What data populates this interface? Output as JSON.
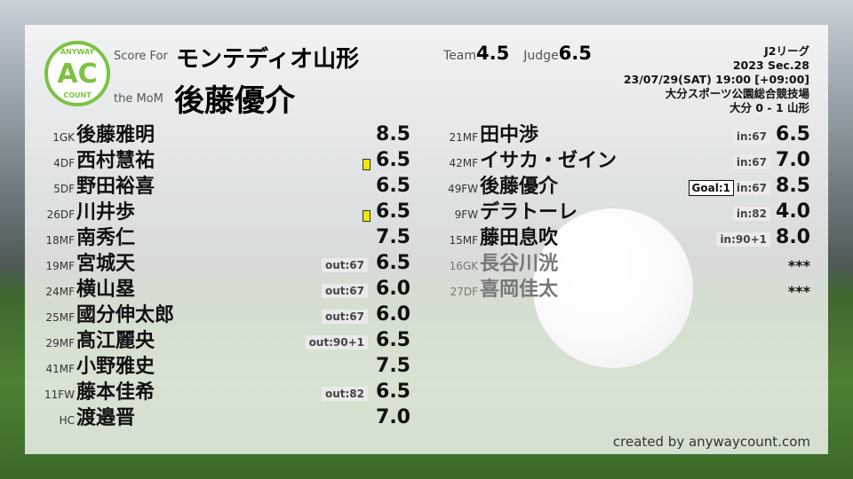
{
  "header": {
    "score_for_label": "Score For",
    "team_name": "モンテディオ山形",
    "mom_label": "the MoM",
    "mom_name": "後藤優介",
    "team_label": "Team",
    "team_score": "4.5",
    "judge_label": "Judge",
    "judge_score": "6.5"
  },
  "logo": {
    "top": "ANYWAY",
    "center": "AC",
    "bottom": "COUNT",
    "color": "#7cc242"
  },
  "match": {
    "league": "J2リーグ",
    "section": "2023 Sec.28",
    "datetime": "23/07/29(SAT) 19:00 [+09:00]",
    "venue": "大分スポーツ公園総合競技場",
    "result": "大分 0 - 1 山形"
  },
  "left": [
    {
      "pos": "1GK",
      "name": "後藤雅明",
      "score": "8.5"
    },
    {
      "pos": "4DF",
      "name": "西村慧祐",
      "score": "6.5",
      "yellow": true
    },
    {
      "pos": "5DF",
      "name": "野田裕喜",
      "score": "6.5"
    },
    {
      "pos": "26DF",
      "name": "川井歩",
      "score": "6.5",
      "yellow": true
    },
    {
      "pos": "18MF",
      "name": "南秀仁",
      "score": "7.5"
    },
    {
      "pos": "19MF",
      "name": "宮城天",
      "score": "6.5",
      "tag": "out:67"
    },
    {
      "pos": "24MF",
      "name": "横山塁",
      "score": "6.0",
      "tag": "out:67"
    },
    {
      "pos": "25MF",
      "name": "國分伸太郎",
      "score": "6.0",
      "tag": "out:67"
    },
    {
      "pos": "29MF",
      "name": "髙江麗央",
      "score": "6.5",
      "tag": "out:90+1"
    },
    {
      "pos": "41MF",
      "name": "小野雅史",
      "score": "7.5"
    },
    {
      "pos": "11FW",
      "name": "藤本佳希",
      "score": "6.5",
      "tag": "out:82"
    },
    {
      "pos": "HC",
      "name": "渡邉晋",
      "score": "7.0"
    }
  ],
  "right": [
    {
      "pos": "21MF",
      "name": "田中渉",
      "score": "6.5",
      "tag": "in:67"
    },
    {
      "pos": "42MF",
      "name": "イサカ・ゼイン",
      "score": "7.0",
      "tag": "in:67"
    },
    {
      "pos": "49FW",
      "name": "後藤優介",
      "score": "8.5",
      "tag": "in:67",
      "goal": "Goal:1"
    },
    {
      "pos": "9FW",
      "name": "デラトーレ",
      "score": "4.0",
      "tag": "in:82"
    },
    {
      "pos": "15MF",
      "name": "藤田息吹",
      "score": "8.0",
      "tag": "in:90+1"
    },
    {
      "pos": "16GK",
      "name": "長谷川洸",
      "score": "***",
      "dim": true
    },
    {
      "pos": "27DF",
      "name": "喜岡佳太",
      "score": "***",
      "dim": true
    }
  ],
  "footer": {
    "credit": "created by anywaycount.com"
  }
}
